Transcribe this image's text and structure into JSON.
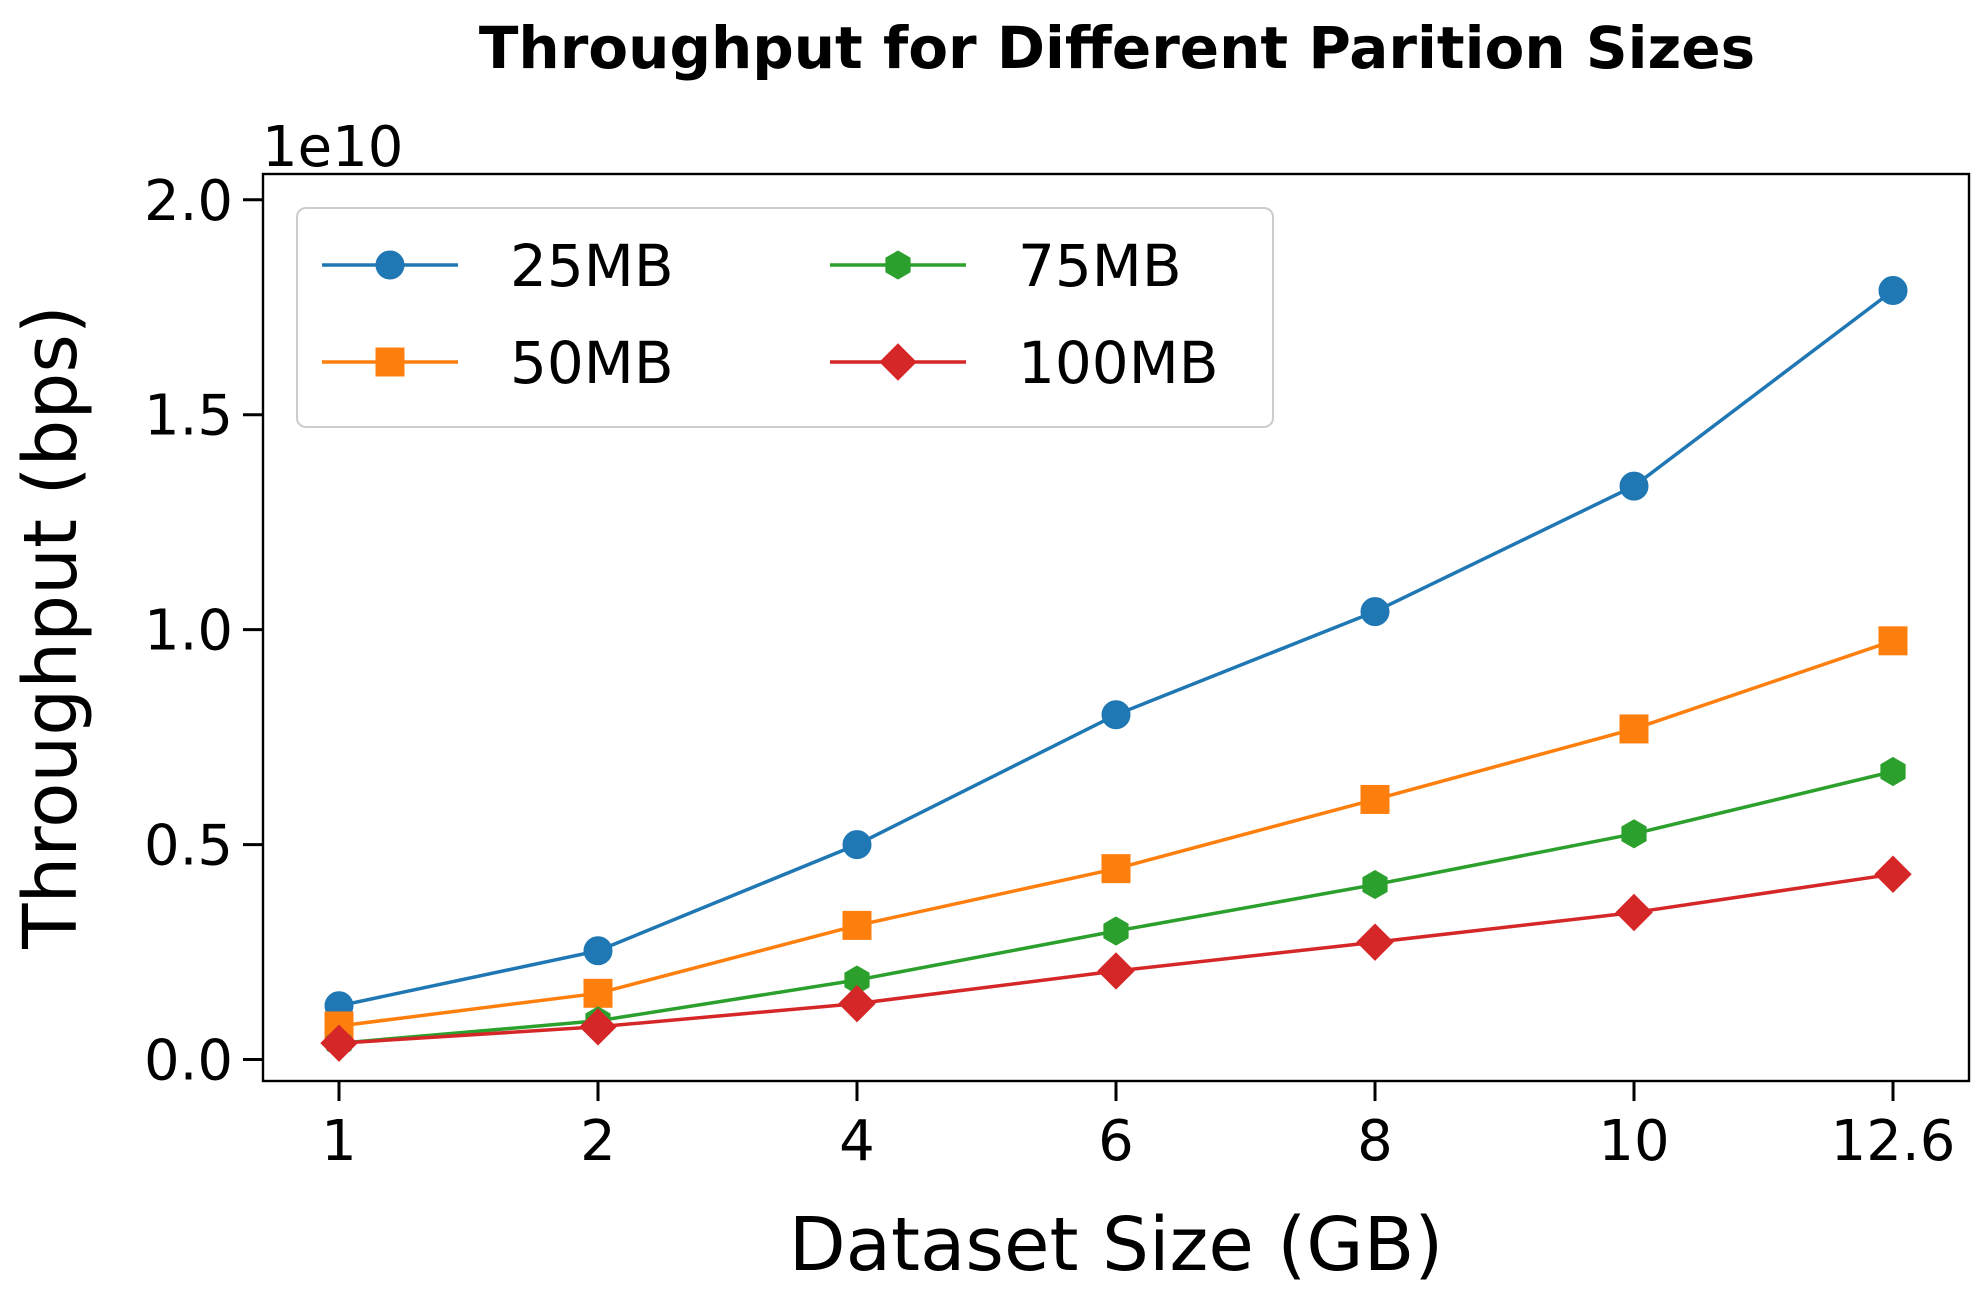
{
  "chart_data": {
    "type": "line",
    "title": "Throughput for Different Parition Sizes",
    "xlabel": "Dataset Size (GB)",
    "ylabel": "Throughput (bps)",
    "y_offset_label": "1e10",
    "x_tick_labels": [
      "1",
      "2",
      "4",
      "6",
      "8",
      "10",
      "12.6"
    ],
    "y_tick_labels": [
      "0.0",
      "0.5",
      "1.0",
      "1.5",
      "2.0"
    ],
    "y_ticks": [
      0,
      5000000000,
      10000000000,
      15000000000,
      20000000000
    ],
    "ylim": [
      -500000000,
      20600000000
    ],
    "x_axis_scale": "categorical (evenly spaced)",
    "legend_placement": "top-left",
    "legend_columns": 2,
    "grid": false,
    "series": [
      {
        "name": "25MB",
        "color": "#1f77b4",
        "marker": "circle",
        "values": [
          1250000000,
          2530000000,
          5000000000,
          8020000000,
          10420000000,
          13340000000,
          17890000000
        ]
      },
      {
        "name": "50MB",
        "color": "#ff7f0e",
        "marker": "square",
        "values": [
          780000000,
          1540000000,
          3120000000,
          4440000000,
          6050000000,
          7690000000,
          9740000000
        ]
      },
      {
        "name": "75MB",
        "color": "#2ca02c",
        "marker": "hexagon",
        "values": [
          380000000,
          900000000,
          1850000000,
          2990000000,
          4070000000,
          5250000000,
          6700000000
        ]
      },
      {
        "name": "100MB",
        "color": "#d62728",
        "marker": "diamond",
        "values": [
          380000000,
          760000000,
          1300000000,
          2060000000,
          2730000000,
          3420000000,
          4310000000
        ]
      }
    ]
  }
}
